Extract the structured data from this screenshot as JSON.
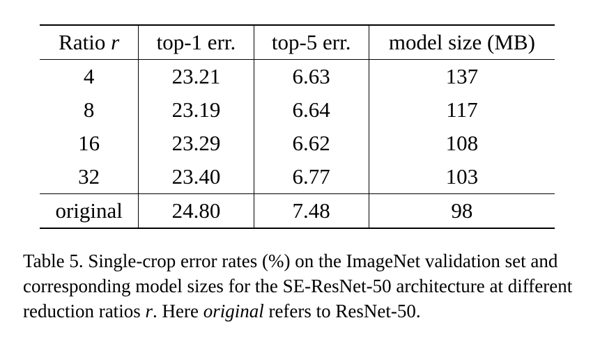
{
  "table": {
    "headers": {
      "ratio_prefix": "Ratio ",
      "ratio_var": "r",
      "top1": "top-1 err.",
      "top5": "top-5 err.",
      "size": "model size (MB)"
    },
    "rows": [
      {
        "ratio": "4",
        "top1": "23.21",
        "top5": "6.63",
        "size": "137"
      },
      {
        "ratio": "8",
        "top1": "23.19",
        "top5": "6.64",
        "size": "117"
      },
      {
        "ratio": "16",
        "top1": "23.29",
        "top5": "6.62",
        "size": "108"
      },
      {
        "ratio": "32",
        "top1": "23.40",
        "top5": "6.77",
        "size": "103"
      },
      {
        "ratio": "original",
        "top1": "24.80",
        "top5": "7.48",
        "size": "98"
      }
    ]
  },
  "caption": {
    "part1": "Table 5. Single-crop error rates (%) on the ImageNet validation set and corresponding model sizes for the SE-ResNet-50 architecture at different reduction ratios ",
    "var": "r",
    "part2": ". Here ",
    "emph": "original",
    "part3": " refers to ResNet-50."
  }
}
